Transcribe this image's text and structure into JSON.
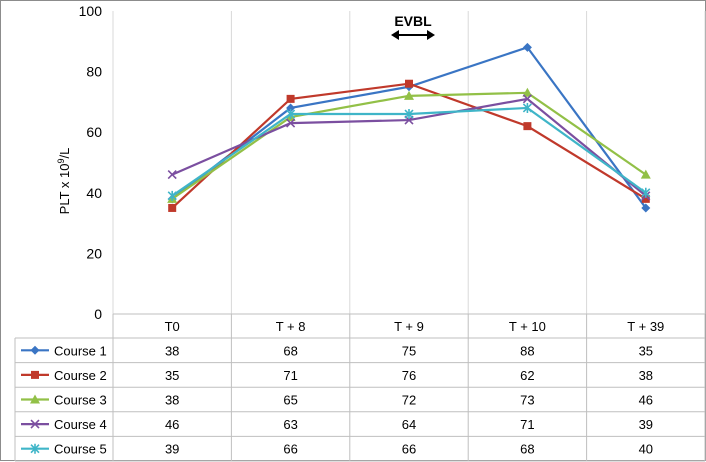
{
  "chart_data": {
    "type": "line",
    "categories": [
      "T0",
      "T + 8",
      "T + 9",
      "T + 10",
      "T + 39"
    ],
    "series": [
      {
        "name": "Course 1",
        "values": [
          38,
          68,
          75,
          88,
          35
        ],
        "color": "#3a75c4",
        "marker": "diamond"
      },
      {
        "name": "Course 2",
        "values": [
          35,
          71,
          76,
          62,
          38
        ],
        "color": "#c0392b",
        "marker": "square"
      },
      {
        "name": "Course 3",
        "values": [
          38,
          65,
          72,
          73,
          46
        ],
        "color": "#92c047",
        "marker": "triangle"
      },
      {
        "name": "Course 4",
        "values": [
          46,
          63,
          64,
          71,
          39
        ],
        "color": "#7b4fa0",
        "marker": "x"
      },
      {
        "name": "Course 5",
        "values": [
          39,
          66,
          66,
          68,
          40
        ],
        "color": "#3fb5c8",
        "marker": "asterisk"
      }
    ],
    "ylabel_parts": {
      "pre": "PLT x 10",
      "sup": "9",
      "post": "/L"
    },
    "ylim": [
      0,
      100
    ],
    "yticks": [
      0,
      20,
      40,
      60,
      80,
      100
    ],
    "annotation": "EVBL",
    "grid": true,
    "legend": "data-table"
  }
}
